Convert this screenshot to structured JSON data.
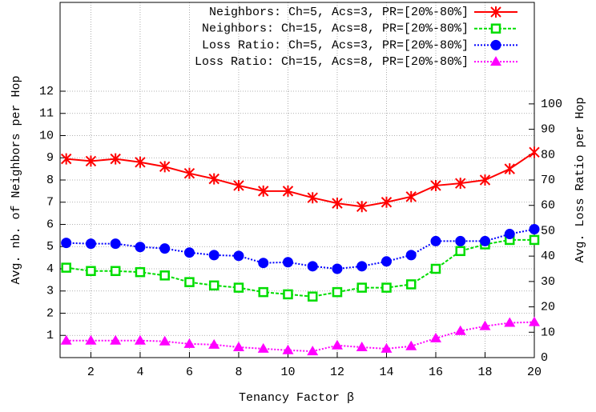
{
  "chart_data": {
    "type": "line",
    "xlabel": "Tenancy Factor β",
    "ylabel": "Avg. nb. of Neighbors per Hop",
    "y2label": "Avg. Loss Ratio per Hop",
    "x": [
      1,
      2,
      3,
      4,
      5,
      6,
      7,
      8,
      9,
      10,
      11,
      12,
      13,
      14,
      15,
      16,
      17,
      18,
      19,
      20
    ],
    "xlim": [
      0.75,
      20
    ],
    "xticks": [
      2,
      4,
      6,
      8,
      10,
      12,
      14,
      16,
      18,
      20
    ],
    "ylim": [
      0,
      16
    ],
    "yticks": [
      1,
      2,
      3,
      4,
      5,
      6,
      7,
      8,
      9,
      10,
      11,
      12
    ],
    "y2lim": [
      0,
      140
    ],
    "y2ticks": [
      0,
      10,
      20,
      30,
      40,
      50,
      60,
      70,
      80,
      90,
      100
    ],
    "grid": true,
    "legend": "top-right",
    "series": [
      {
        "name": "Neighbors: Ch=5, Acs=3, PR=[20%-80%]",
        "color": "#ff0000",
        "marker": "x",
        "dash": "solid",
        "values": [
          8.95,
          8.85,
          8.95,
          8.8,
          8.6,
          8.3,
          8.05,
          7.75,
          7.5,
          7.5,
          7.2,
          6.95,
          6.8,
          7.0,
          7.25,
          7.75,
          7.85,
          8.0,
          8.5,
          9.25
        ]
      },
      {
        "name": "Neighbors: Ch=15, Acs=8, PR=[20%-80%]",
        "color": "#00dd00",
        "marker": "square",
        "dash": "dashed",
        "values": [
          4.05,
          3.9,
          3.9,
          3.85,
          3.7,
          3.4,
          3.25,
          3.15,
          2.95,
          2.85,
          2.75,
          2.95,
          3.15,
          3.15,
          3.3,
          4.0,
          4.8,
          5.1,
          5.3,
          5.3
        ]
      },
      {
        "name": "Loss Ratio: Ch=5, Acs=3, PR=[20%-80%]",
        "color": "#0000ff",
        "marker": "circle",
        "dash": "dotted",
        "axis": "y2",
        "values": [
          45.2,
          44.9,
          44.9,
          43.6,
          43,
          41.4,
          40.4,
          40.1,
          37.3,
          37.6,
          36,
          35,
          36,
          37.9,
          40.4,
          45.9,
          45.9,
          45.9,
          48.7,
          50.6
        ]
      },
      {
        "name": "Loss Ratio: Ch=15, Acs=8, PR=[20%-80%]",
        "color": "#ff00ff",
        "marker": "triangle",
        "dash": "dotted",
        "axis": "y2",
        "values": [
          6.7,
          6.7,
          6.7,
          6.7,
          6.4,
          5.4,
          5.1,
          4.1,
          3.5,
          2.9,
          2.5,
          4.8,
          4.1,
          3.5,
          4.5,
          7.6,
          10.5,
          12.4,
          13.7,
          14.0
        ]
      }
    ]
  }
}
